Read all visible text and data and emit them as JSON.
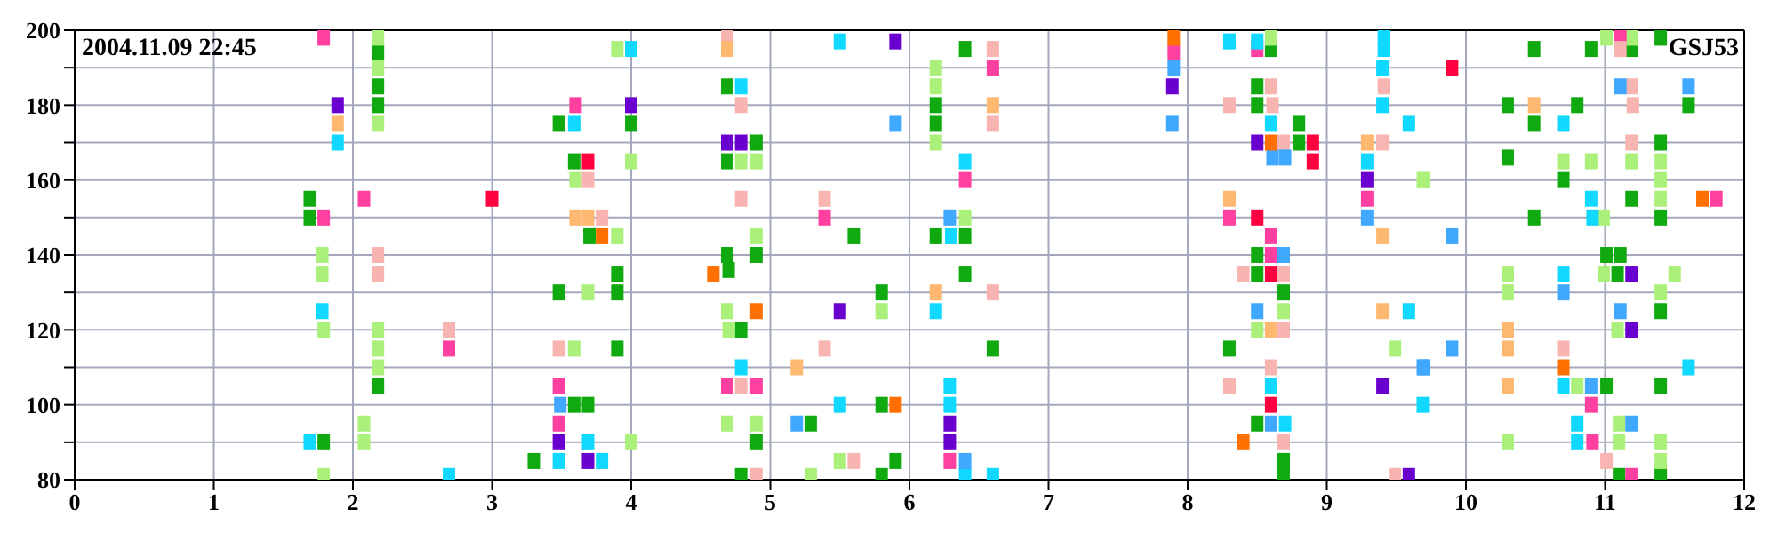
{
  "chart_data": {
    "type": "scatter",
    "marker": "square",
    "grid": true,
    "annotations": [
      "2004.11.09 22:45",
      "GSJ53"
    ],
    "xlim": [
      0,
      12
    ],
    "xticks": [
      0,
      1,
      2,
      3,
      4,
      5,
      6,
      7,
      8,
      9,
      10,
      11,
      12
    ],
    "ylim": [
      80,
      200
    ],
    "yticks": [
      80,
      {
        "value": 90,
        "label": null
      },
      100,
      {
        "value": 110,
        "label": null
      },
      120,
      {
        "value": 130,
        "label": null
      },
      140,
      {
        "value": 150,
        "label": null
      },
      160,
      {
        "value": 170,
        "label": null
      },
      180,
      {
        "value": 190,
        "label": null
      },
      200
    ],
    "series": [
      {
        "color": "#10aa10",
        "x": [
          2.18,
          2.18,
          2.18,
          1.69,
          1.69,
          2.18,
          1.79,
          4.69,
          3.48,
          4.0,
          4.9,
          3.59,
          4.69,
          3.7,
          4.69,
          4.9,
          3.9,
          4.7,
          3.48,
          3.9,
          4.79,
          3.9,
          3.59,
          3.69,
          4.9,
          3.3,
          4.79,
          6.4,
          6.19,
          6.19,
          5.6,
          6.19,
          6.4,
          6.4,
          5.8,
          6.6,
          5.8,
          5.29,
          5.9,
          5.8,
          8.6,
          8.5,
          8.5,
          8.8,
          8.8,
          8.5,
          8.5,
          8.69,
          8.3,
          8.5,
          8.69,
          8.69,
          11.4,
          10.49,
          10.9,
          11.19,
          10.3,
          10.8,
          11.6,
          10.49,
          11.4,
          10.3,
          10.7,
          11.19,
          10.49,
          11.4,
          11.01,
          11.11,
          11.09,
          11.4,
          11.01,
          11.4,
          11.1,
          11.4
        ],
        "values": [
          194,
          185,
          180,
          155,
          150,
          105,
          90,
          185,
          175,
          175,
          170,
          165,
          165,
          145,
          140,
          140,
          135,
          136,
          130,
          130,
          120,
          115,
          100,
          100,
          90,
          85,
          81,
          195,
          180,
          175,
          145,
          145,
          145,
          135,
          130,
          115,
          100,
          95,
          85,
          81,
          195,
          185,
          180,
          175,
          170,
          140,
          135,
          130,
          115,
          95,
          85,
          81,
          198,
          195,
          195,
          195,
          180,
          180,
          180,
          175,
          170,
          166,
          160,
          155,
          150,
          150,
          140,
          140,
          135,
          125,
          105,
          105,
          81,
          81
        ]
      },
      {
        "color": "#aaf07a",
        "x": [
          2.18,
          2.18,
          2.18,
          1.78,
          1.78,
          1.79,
          2.18,
          2.18,
          2.18,
          2.08,
          2.08,
          1.79,
          3.9,
          4.0,
          4.79,
          4.9,
          3.6,
          3.9,
          4.9,
          3.69,
          4.69,
          4.7,
          3.59,
          4.69,
          4.9,
          4.0,
          6.19,
          6.19,
          6.19,
          6.4,
          5.8,
          5.5,
          5.29,
          8.6,
          9.69,
          8.69,
          8.5,
          9.49,
          11.01,
          11.19,
          10.7,
          10.9,
          11.19,
          11.4,
          9.7,
          11.4,
          11.4,
          10.99,
          10.3,
          10.99,
          11.5,
          10.3,
          11.4,
          11.09,
          10.8,
          11.1,
          10.3,
          11.1,
          11.4,
          11.4
        ],
        "values": [
          198,
          190,
          175,
          140,
          135,
          120,
          120,
          115,
          110,
          95,
          90,
          81,
          195,
          165,
          165,
          165,
          160,
          145,
          145,
          130,
          125,
          120,
          115,
          95,
          95,
          90,
          190,
          185,
          170,
          150,
          125,
          85,
          81,
          198,
          160,
          125,
          120,
          115,
          198,
          198,
          165,
          165,
          165,
          165,
          160,
          160,
          155,
          150,
          135,
          135,
          135,
          130,
          130,
          120,
          105,
          95,
          90,
          90,
          90,
          85
        ]
      },
      {
        "color": "#ff40a0",
        "x": [
          1.79,
          2.08,
          1.79,
          3.6,
          3.48,
          4.69,
          4.9,
          3.48,
          2.69,
          6.6,
          6.4,
          5.39,
          6.29,
          7.9,
          8.5,
          9.29,
          8.3,
          8.6,
          8.6,
          11.11,
          11.8,
          10.9,
          10.91,
          11.19
        ],
        "values": [
          198,
          155,
          150,
          180,
          105,
          105,
          105,
          95,
          115,
          190,
          160,
          150,
          85,
          194,
          195,
          155,
          150,
          145,
          140,
          198,
          155,
          100,
          90,
          81
        ]
      },
      {
        "color": "#f8b4b0",
        "x": [
          2.18,
          2.18,
          4.69,
          4.79,
          3.69,
          4.79,
          3.79,
          2.69,
          3.48,
          4.79,
          4.9,
          6.6,
          6.6,
          5.39,
          6.6,
          5.39,
          5.6,
          8.6,
          9.41,
          8.3,
          8.61,
          8.69,
          9.4,
          8.4,
          8.69,
          8.69,
          8.6,
          8.3,
          8.69,
          9.49,
          11.11,
          11.19,
          11.2,
          11.19,
          10.7,
          11.01
        ],
        "values": [
          140,
          135,
          198,
          180,
          160,
          155,
          150,
          120,
          115,
          105,
          81,
          195,
          175,
          155,
          130,
          115,
          85,
          185,
          185,
          180,
          180,
          170,
          170,
          135,
          135,
          120,
          110,
          105,
          90,
          81,
          195,
          185,
          180,
          170,
          115,
          85
        ]
      },
      {
        "color": "#10d8ff",
        "x": [
          1.89,
          1.78,
          1.69,
          4.0,
          4.79,
          3.59,
          4.79,
          3.69,
          3.48,
          3.79,
          2.69,
          5.5,
          6.4,
          6.3,
          6.19,
          6.29,
          5.5,
          6.29,
          6.4,
          6.6,
          8.3,
          8.5,
          9.41,
          9.41,
          9.4,
          9.4,
          8.6,
          9.59,
          9.29,
          9.59,
          8.6,
          9.69,
          8.7,
          10.7,
          10.9,
          10.91,
          10.7,
          11.6,
          10.7,
          10.8,
          10.8
        ],
        "values": [
          170,
          125,
          90,
          195,
          185,
          175,
          110,
          90,
          85,
          85,
          81,
          197,
          165,
          145,
          125,
          105,
          100,
          100,
          81,
          81,
          197,
          197,
          198,
          195,
          190,
          180,
          175,
          175,
          165,
          125,
          105,
          100,
          95,
          175,
          155,
          150,
          135,
          110,
          105,
          95,
          90
        ]
      },
      {
        "color": "#40a8ff",
        "x": [
          3.49,
          5.9,
          6.29,
          5.19,
          6.4,
          7.9,
          7.89,
          8.61,
          8.7,
          9.29,
          8.69,
          8.5,
          9.69,
          8.6,
          11.11,
          11.6,
          9.9,
          10.7,
          11.11,
          9.9,
          9.7,
          10.9,
          11.19
        ],
        "values": [
          100,
          175,
          150,
          95,
          85,
          190,
          175,
          166,
          166,
          150,
          140,
          125,
          110,
          95,
          185,
          185,
          145,
          130,
          125,
          115,
          110,
          105,
          95
        ]
      },
      {
        "color": "#6a00d0",
        "x": [
          1.89,
          4.0,
          4.69,
          4.79,
          3.48,
          3.69,
          5.9,
          5.5,
          6.29,
          6.29,
          7.89,
          8.5,
          9.29,
          9.4,
          9.59,
          11.19,
          11.19
        ],
        "values": [
          180,
          180,
          170,
          170,
          90,
          85,
          197,
          125,
          95,
          90,
          185,
          170,
          160,
          105,
          81,
          135,
          120
        ]
      },
      {
        "color": "#ff7000",
        "x": [
          3.79,
          4.59,
          4.9,
          5.9,
          7.9,
          8.6,
          8.4,
          11.7,
          10.7
        ],
        "values": [
          145,
          135,
          125,
          100,
          198,
          170,
          90,
          155,
          110
        ]
      },
      {
        "color": "#ffb870",
        "x": [
          1.89,
          4.69,
          3.6,
          3.69,
          6.6,
          6.19,
          5.19,
          9.29,
          8.3,
          9.4,
          9.4,
          8.6,
          10.49,
          10.3,
          10.3,
          10.3
        ],
        "values": [
          175,
          195,
          150,
          150,
          180,
          130,
          110,
          170,
          155,
          145,
          125,
          120,
          180,
          120,
          115,
          105
        ]
      },
      {
        "color": "#ff0040",
        "x": [
          3.0,
          3.69,
          8.9,
          8.9,
          8.5,
          8.6,
          8.6,
          9.9
        ],
        "values": [
          155,
          165,
          170,
          165,
          150,
          135,
          100,
          190
        ]
      }
    ]
  }
}
